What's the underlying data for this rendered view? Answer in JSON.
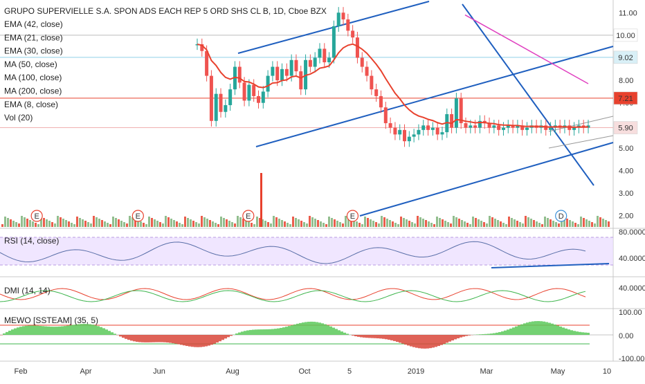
{
  "chart_data": {
    "type": "candlestick",
    "symbol_title": "GRUPO SUPERVIELLE S.A. SPON ADS EACH REP 5 ORD SHS CL B, 1D, Cboe BZX",
    "indicators": [
      "EMA (42, close)",
      "EMA (21, close)",
      "EMA (30, close)",
      "MA (50, close)",
      "MA (100, close)",
      "MA (200, close)",
      "EMA (8, close)",
      "Vol (20)"
    ],
    "price_axis": {
      "min": 1.5,
      "max": 11.5,
      "ticks": [
        "11.00",
        "10.00",
        "9.00",
        "8.00",
        "7.00",
        "6.00",
        "5.00",
        "4.00",
        "3.00",
        "2.00"
      ]
    },
    "price_tags": [
      {
        "label": "10.00",
        "value": 10.0,
        "color": "#ffffff",
        "text_color": "#222222"
      },
      {
        "label": "9.02",
        "value": 9.02,
        "color": "#d9f0f7",
        "text_color": "#222222"
      },
      {
        "label": "7.21",
        "value": 7.21,
        "color": "#e8412d",
        "text_color": "#ffffff"
      },
      {
        "label": "5.90",
        "value": 5.9,
        "color": "#f7dede",
        "text_color": "#222222"
      }
    ],
    "x_labels": [
      "Feb",
      "Apr",
      "Jun",
      "Aug",
      "Oct",
      "5",
      "2019",
      "Mar",
      "May",
      "10"
    ],
    "price_series": {
      "x": [
        0,
        4,
        8,
        12,
        16,
        20,
        24,
        28,
        32,
        36,
        40,
        44,
        48,
        52,
        56,
        60,
        64,
        68,
        72,
        76,
        80,
        84,
        88,
        92,
        96,
        100,
        104,
        108,
        112,
        116,
        120,
        124,
        128,
        132,
        136,
        140,
        144,
        148,
        152,
        156,
        160,
        164,
        168,
        172,
        176,
        180,
        184,
        188,
        192,
        196,
        200,
        204,
        208,
        212,
        216,
        220,
        224,
        228,
        232,
        236,
        240,
        244,
        248,
        252,
        256,
        260,
        264,
        268,
        272,
        276,
        280,
        284,
        288,
        292,
        296,
        300,
        304,
        308,
        312,
        316,
        320,
        324,
        328,
        332
      ],
      "close": [
        9.6,
        9.3,
        8.2,
        6.2,
        7.4,
        6.6,
        6.9,
        7.6,
        8.6,
        7.9,
        7.1,
        7.8,
        7.3,
        7.0,
        7.5,
        8.2,
        8.6,
        8.0,
        8.5,
        8.2,
        8.9,
        8.4,
        7.6,
        8.9,
        8.6,
        9.0,
        9.4,
        8.8,
        9.0,
        10.4,
        11.0,
        10.7,
        10.2,
        9.9,
        9.0,
        8.6,
        8.2,
        7.6,
        7.3,
        6.8,
        6.1,
        5.9,
        5.6,
        5.8,
        5.3,
        5.5,
        5.6,
        5.8,
        6.0,
        5.8,
        5.9,
        5.6,
        5.7,
        6.5,
        5.9,
        7.2,
        6.1,
        5.9,
        6.0,
        5.9,
        6.2,
        6.1,
        5.9,
        6.0,
        5.8,
        5.9,
        6.0,
        5.9,
        6.0,
        5.8,
        5.9,
        6.0,
        5.9,
        6.0,
        5.8,
        5.9,
        6.0,
        5.9,
        6.0,
        5.8,
        5.9,
        6.0,
        5.9,
        6.0
      ]
    },
    "events": [
      {
        "label": "E",
        "pos": 0.06
      },
      {
        "label": "E",
        "pos": 0.225
      },
      {
        "label": "E",
        "pos": 0.405
      },
      {
        "label": "E",
        "pos": 0.575
      },
      {
        "label": "D",
        "pos": 0.915
      }
    ],
    "rsi": {
      "title": "RSI (14, close)",
      "ticks": [
        "80.0000",
        "40.0000"
      ]
    },
    "dmi": {
      "title": "DMI (14, 14)",
      "ticks": [
        "40.0000"
      ]
    },
    "mewo": {
      "title": "MEWO [SSTEAM] (35, 5)",
      "ticks": [
        "100.00",
        "0.00",
        "-100.00"
      ]
    },
    "colors": {
      "up": "#26a69a",
      "down": "#ef5350",
      "trend": "#1f5fbf",
      "ma_red": "#e8412d",
      "ma_magenta": "#e040c0",
      "rsi_fill": "#e9dcff",
      "mewo_green": "#5cc95a",
      "mewo_red": "#d9463a"
    }
  }
}
